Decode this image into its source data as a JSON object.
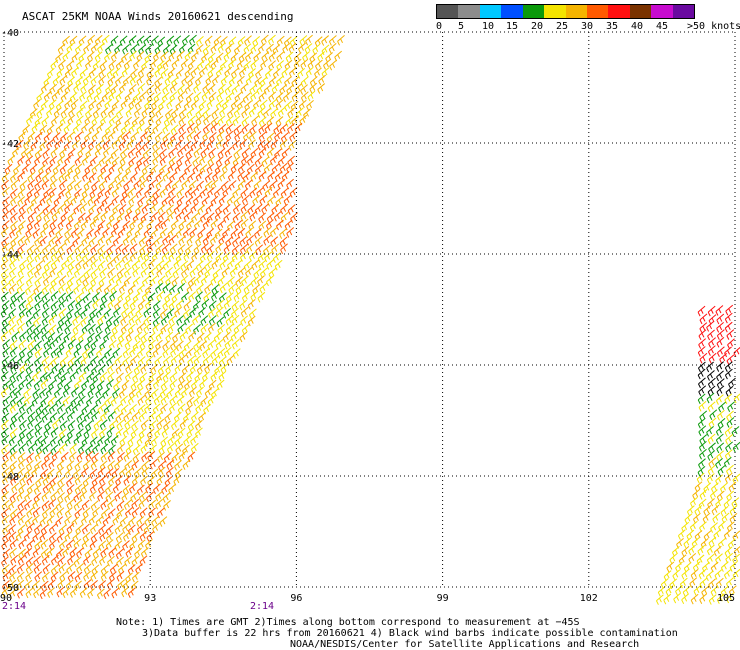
{
  "header": {
    "title": "ASCAT 25KM NOAA Winds 20160621 descending"
  },
  "legend": {
    "colors": [
      "#555555",
      "#8c8c8c",
      "#00c8ff",
      "#0050ff",
      "#0b9a0b",
      "#f4e400",
      "#f5b400",
      "#ff5a00",
      "#ff1010",
      "#7a3300",
      "#c70ccf",
      "#6a0aa0"
    ],
    "labels": [
      "0",
      "5",
      "10",
      "15",
      "20",
      "25",
      "30",
      "35",
      "40",
      "45",
      ">50 knots"
    ]
  },
  "map": {
    "lat_labels": [
      "-40",
      "-42",
      "-44",
      "-46",
      "-48",
      "-50"
    ],
    "lon_labels": [
      "90",
      "93",
      "96",
      "99",
      "102",
      "105"
    ],
    "time_labels": [
      "2:14",
      "2:14"
    ]
  },
  "notes": {
    "line1": "Note: 1) Times are GMT 2)Times along bottom correspond to measurement at −45S",
    "line2": "3)Data buffer is 22 hrs from 20160621 4) Black wind barbs indicate possible contamination",
    "line3": "NOAA/NESDIS/Center for Satellite Applications and Research"
  }
}
